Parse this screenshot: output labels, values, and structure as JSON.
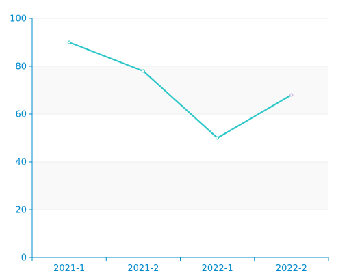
{
  "chart_data": {
    "type": "line",
    "categories": [
      "2021-1",
      "2021-2",
      "2022-1",
      "2022-2"
    ],
    "series": [
      {
        "values": [
          90,
          78,
          50,
          68
        ]
      }
    ],
    "ylim": [
      0,
      100
    ],
    "yticks": [
      0,
      20,
      40,
      60,
      80,
      100
    ],
    "ytick_labels": [
      "0",
      "20",
      "40",
      "60",
      "80",
      "100"
    ],
    "grid": true,
    "alternating_bands": true,
    "colors": {
      "line": "#2ec7c9",
      "axis": "#008acd",
      "tick_label": "#008acd",
      "grid": "#eeeeee",
      "band": "#f9f9f9",
      "point_stroke_default": "#2ec7c9",
      "point_stroke_last": "#b6a2de",
      "point_fill": "#ffffff"
    }
  }
}
